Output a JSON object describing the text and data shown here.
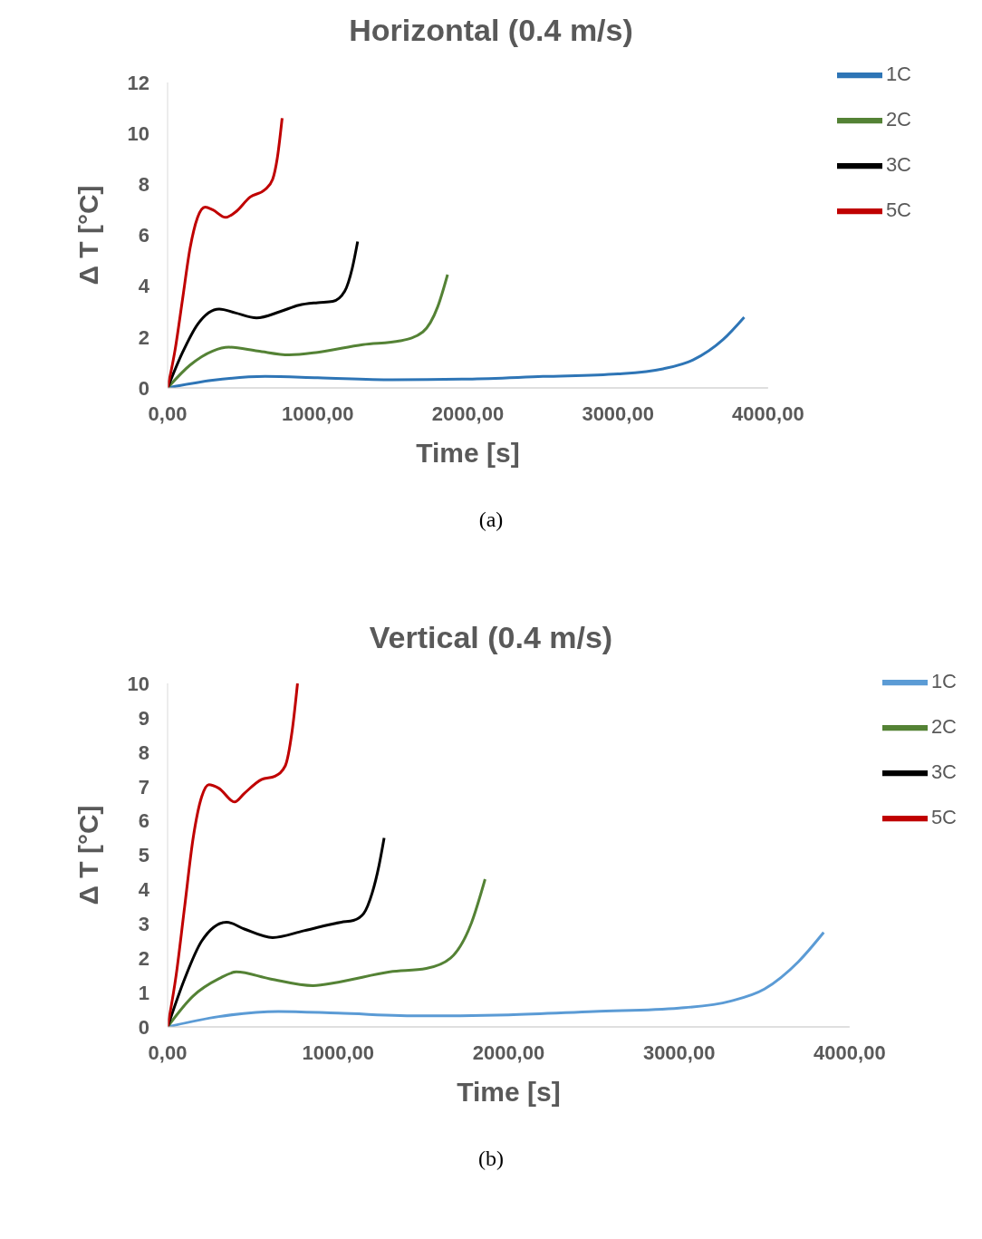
{
  "chart_data": [
    {
      "type": "line",
      "title": "Horizontal (0.4 m/s)",
      "xlabel": "Time [s]",
      "ylabel": "Δ T [°C]",
      "xlim": [
        0,
        4000
      ],
      "xticks": [
        {
          "value": 0,
          "label": "0,00"
        },
        {
          "value": 1000,
          "label": "1000,00"
        },
        {
          "value": 2000,
          "label": "2000,00"
        },
        {
          "value": 3000,
          "label": "3000,00"
        },
        {
          "value": 4000,
          "label": "4000,00"
        }
      ],
      "ylim": [
        0,
        12
      ],
      "yticks": [
        0,
        2,
        4,
        6,
        8,
        10,
        12
      ],
      "grid": false,
      "legend": "top right",
      "annotations": [
        "(a)"
      ],
      "series": [
        {
          "name": "1C",
          "color": "#2e75b6",
          "x": [
            0,
            300,
            650,
            1000,
            1500,
            2000,
            2500,
            3000,
            3300,
            3500,
            3700,
            3841
          ],
          "values": [
            0,
            0.3,
            0.45,
            0.4,
            0.32,
            0.35,
            0.45,
            0.55,
            0.75,
            1.1,
            1.9,
            2.78
          ]
        },
        {
          "name": "2C",
          "color": "#548235",
          "x": [
            0,
            150,
            300,
            408,
            600,
            810,
            1000,
            1300,
            1550,
            1700,
            1800,
            1865
          ],
          "values": [
            0,
            0.9,
            1.45,
            1.6,
            1.45,
            1.3,
            1.4,
            1.7,
            1.85,
            2.2,
            3.2,
            4.45
          ]
        },
        {
          "name": "3C",
          "color": "#000000",
          "x": [
            0,
            100,
            200,
            344,
            450,
            593,
            750,
            874,
            1000,
            1100,
            1180,
            1230,
            1266
          ],
          "values": [
            0,
            1.4,
            2.5,
            3.1,
            2.95,
            2.75,
            3.0,
            3.25,
            3.35,
            3.4,
            3.8,
            4.7,
            5.75
          ]
        },
        {
          "name": "5C",
          "color": "#c00000",
          "x": [
            0,
            50,
            100,
            150,
            200,
            250,
            300,
            387,
            450,
            550,
            650,
            700,
            730,
            763
          ],
          "values": [
            0,
            1.5,
            3.5,
            5.5,
            6.7,
            7.1,
            7.0,
            6.7,
            6.9,
            7.5,
            7.8,
            8.2,
            9.0,
            10.6
          ]
        }
      ]
    },
    {
      "type": "line",
      "title": "Vertical (0.4 m/s)",
      "xlabel": "Time [s]",
      "ylabel": "Δ T [°C]",
      "xlim": [
        0,
        4000
      ],
      "xticks": [
        {
          "value": 0,
          "label": "0,00"
        },
        {
          "value": 1000,
          "label": "1000,00"
        },
        {
          "value": 2000,
          "label": "2000,00"
        },
        {
          "value": 3000,
          "label": "3000,00"
        },
        {
          "value": 4000,
          "label": "4000,00"
        }
      ],
      "ylim": [
        0,
        10
      ],
      "yticks": [
        0,
        1,
        2,
        3,
        4,
        5,
        6,
        7,
        8,
        9,
        10
      ],
      "grid": false,
      "legend": "top right",
      "annotations": [
        "(b)"
      ],
      "series": [
        {
          "name": "1C",
          "color": "#5b9bd5",
          "x": [
            0,
            300,
            650,
            1000,
            1500,
            2000,
            2500,
            3000,
            3300,
            3500,
            3700,
            3848
          ],
          "values": [
            0,
            0.3,
            0.45,
            0.4,
            0.32,
            0.35,
            0.45,
            0.55,
            0.75,
            1.1,
            1.9,
            2.75
          ]
        },
        {
          "name": "2C",
          "color": "#548235",
          "x": [
            0,
            150,
            300,
            403,
            600,
            853,
            1000,
            1303,
            1517,
            1659,
            1780,
            1862
          ],
          "values": [
            0,
            0.9,
            1.4,
            1.6,
            1.4,
            1.2,
            1.3,
            1.6,
            1.7,
            2.0,
            3.0,
            4.3
          ]
        },
        {
          "name": "3C",
          "color": "#000000",
          "x": [
            0,
            100,
            200,
            346,
            450,
            616,
            800,
            1019,
            1090,
            1150,
            1200,
            1240,
            1270
          ],
          "values": [
            0,
            1.4,
            2.5,
            3.05,
            2.85,
            2.6,
            2.8,
            3.05,
            3.1,
            3.3,
            3.9,
            4.7,
            5.5
          ]
        },
        {
          "name": "5C",
          "color": "#c00000",
          "x": [
            0,
            50,
            100,
            150,
            200,
            242,
            300,
            393,
            450,
            550,
            630,
            690,
            730,
            762
          ],
          "values": [
            0,
            1.5,
            3.5,
            5.5,
            6.7,
            7.05,
            6.95,
            6.55,
            6.8,
            7.2,
            7.3,
            7.6,
            8.6,
            10.0
          ]
        }
      ]
    }
  ]
}
